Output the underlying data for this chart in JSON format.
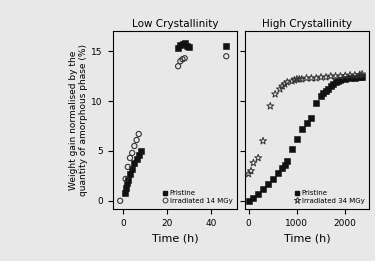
{
  "title_left": "Low Crystallinity",
  "title_right": "High Crystallinity",
  "xlabel": "Time (h)",
  "ylabel": "Weight gain normalised by the\nquantity of amorphous phase (%)",
  "ylim": [
    -0.8,
    17
  ],
  "yticks": [
    0,
    5,
    10,
    15
  ],
  "lc_pristine_x": [
    0.5,
    1,
    1.5,
    2,
    3,
    4,
    5,
    6,
    7,
    8,
    25,
    26,
    27,
    28,
    29,
    30,
    47
  ],
  "lc_pristine_y": [
    0.8,
    1.3,
    1.8,
    2.1,
    2.7,
    3.2,
    3.8,
    4.2,
    4.6,
    5.0,
    15.3,
    15.6,
    15.7,
    15.8,
    15.5,
    15.4,
    15.5
  ],
  "lc_irrad_x": [
    -1.5,
    1,
    2,
    3,
    4,
    5,
    6,
    7,
    25,
    26,
    27,
    28,
    47
  ],
  "lc_irrad_y": [
    0.0,
    2.2,
    3.4,
    4.3,
    4.8,
    5.5,
    6.1,
    6.7,
    13.5,
    14.0,
    14.2,
    14.3,
    14.5
  ],
  "hc_pristine_x": [
    0,
    100,
    200,
    300,
    400,
    500,
    600,
    700,
    750,
    800,
    900,
    1000,
    1100,
    1200,
    1300,
    1400,
    1500,
    1550,
    1600,
    1650,
    1700,
    1750,
    1800,
    1850,
    1900,
    2000,
    2100,
    2200,
    2300,
    2350
  ],
  "hc_pristine_y": [
    0.0,
    0.3,
    0.7,
    1.2,
    1.7,
    2.2,
    2.8,
    3.3,
    3.6,
    4.0,
    5.2,
    6.2,
    7.2,
    7.8,
    8.3,
    9.8,
    10.5,
    10.8,
    11.0,
    11.2,
    11.5,
    11.7,
    11.9,
    12.0,
    12.1,
    12.2,
    12.3,
    12.35,
    12.4,
    12.4
  ],
  "hc_irrad_x": [
    0,
    50,
    100,
    200,
    300,
    450,
    550,
    650,
    700,
    750,
    800,
    900,
    950,
    1000,
    1050,
    1100,
    1200,
    1300,
    1400,
    1500,
    1600,
    1700,
    1800,
    1900,
    2000,
    2100,
    2200,
    2300,
    2350
  ],
  "hc_irrad_y": [
    2.7,
    3.0,
    3.8,
    4.3,
    6.0,
    9.5,
    10.7,
    11.2,
    11.5,
    11.7,
    11.9,
    12.0,
    12.1,
    12.2,
    12.2,
    12.2,
    12.3,
    12.3,
    12.3,
    12.4,
    12.4,
    12.5,
    12.5,
    12.5,
    12.55,
    12.6,
    12.6,
    12.65,
    12.7
  ],
  "pristine_color": "#111111",
  "irrad_color": "#333333",
  "background": "#e8e8e8"
}
